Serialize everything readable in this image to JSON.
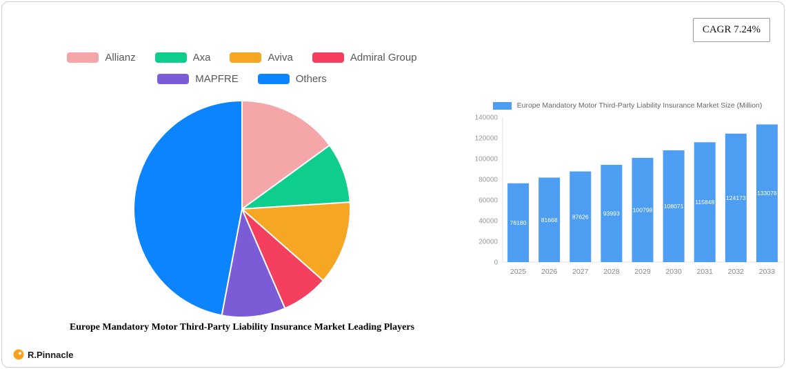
{
  "header": {
    "cagr_label": "CAGR 7.24%"
  },
  "footer": {
    "brand": "R.Pinnacle"
  },
  "chart_data": [
    {
      "type": "pie",
      "title": "Europe Mandatory Motor Third-Party Liability Insurance Market Leading Players",
      "labels": [
        "Allianz",
        "Axa",
        "Aviva",
        "Admiral Group",
        "MAPFRE",
        "Others"
      ],
      "values": [
        15,
        9,
        12.5,
        7,
        9.5,
        47
      ],
      "colors": [
        "#F4A6A9",
        "#0FCE8D",
        "#F5A623",
        "#F43F5E",
        "#7B5CD6",
        "#0B84FE"
      ],
      "legend_position": "top",
      "legend_rows": [
        [
          0,
          1,
          2,
          3
        ],
        [
          4,
          5
        ]
      ]
    },
    {
      "type": "bar",
      "legend": "Europe Mandatory Motor Third-Party Liability Insurance Market Size (Million)",
      "categories": [
        "2025",
        "2026",
        "2027",
        "2028",
        "2029",
        "2030",
        "2031",
        "2032",
        "2033"
      ],
      "values": [
        76180,
        81668,
        87626,
        93993,
        100798,
        108071,
        115848,
        124173,
        133078
      ],
      "bar_color": "#4D9EF3",
      "ylim": [
        0,
        140000
      ],
      "yticks": [
        0,
        20000,
        40000,
        60000,
        80000,
        100000,
        120000,
        140000
      ],
      "grid": false,
      "legend_position": "top"
    }
  ]
}
